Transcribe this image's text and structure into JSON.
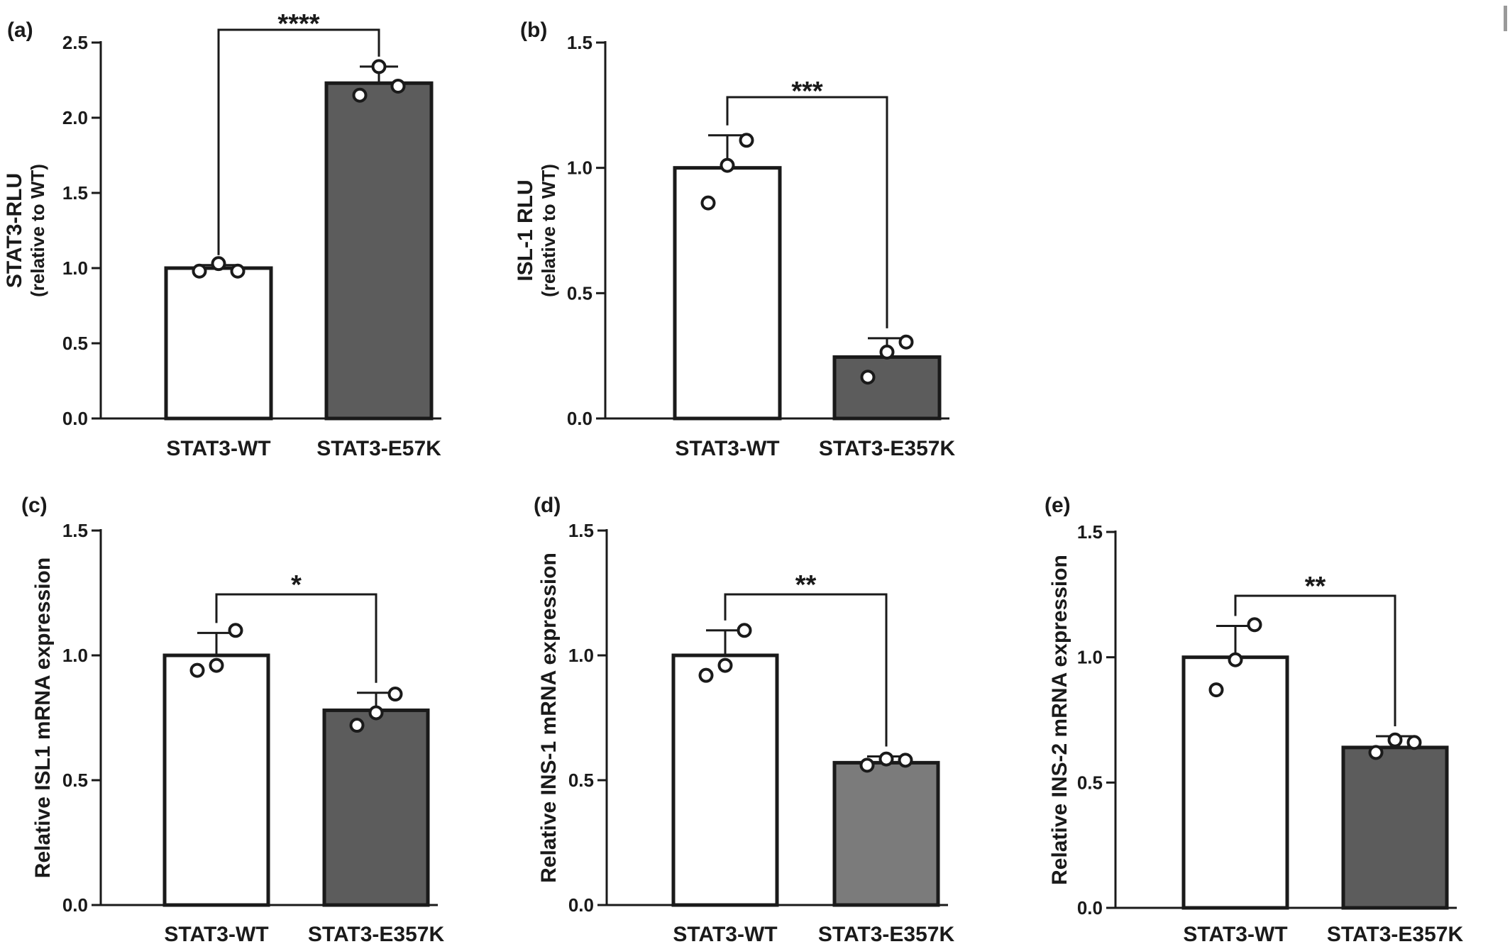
{
  "figure": {
    "panels": [
      {
        "label": "(a)",
        "ylabel": [
          "STAT3-RLU",
          "(relative to WT)"
        ],
        "categories": [
          "STAT3-WT",
          "STAT3-E57K"
        ],
        "yticks": [
          "0.0",
          "0.5",
          "1.0",
          "1.5",
          "2.0",
          "2.5"
        ],
        "significance": "****"
      },
      {
        "label": "(b)",
        "ylabel": [
          "ISL-1 RLU",
          "(relative to WT)"
        ],
        "categories": [
          "STAT3-WT",
          "STAT3-E357K"
        ],
        "yticks": [
          "0.0",
          "0.5",
          "1.0",
          "1.5"
        ],
        "significance": "***"
      },
      {
        "label": "(c)",
        "ylabel": [
          "Relative ISL1 mRNA expression"
        ],
        "categories": [
          "STAT3-WT",
          "STAT3-E357K"
        ],
        "yticks": [
          "0.0",
          "0.5",
          "1.0",
          "1.5"
        ],
        "significance": "*"
      },
      {
        "label": "(d)",
        "ylabel": [
          "Relative INS-1 mRNA expression"
        ],
        "categories": [
          "STAT3-WT",
          "STAT3-E357K"
        ],
        "yticks": [
          "0.0",
          "0.5",
          "1.0",
          "1.5"
        ],
        "significance": "**"
      },
      {
        "label": "(e)",
        "ylabel": [
          "Relative INS-2 mRNA expression"
        ],
        "categories": [
          "STAT3-WT",
          "STAT3-E357K"
        ],
        "yticks": [
          "0.0",
          "0.5",
          "1.0",
          "1.5"
        ],
        "significance": "**"
      }
    ]
  },
  "chart_data": [
    {
      "type": "bar",
      "categories": [
        "STAT3-WT",
        "STAT3-E57K"
      ],
      "values": [
        1.0,
        2.23
      ],
      "error_upper": [
        1.02,
        2.34
      ],
      "points": [
        [
          0.98,
          1.03,
          0.98
        ],
        [
          2.15,
          2.34,
          2.21
        ]
      ],
      "bar_colors": [
        "#ffffff",
        "#5c5c5c"
      ],
      "ylim": [
        0,
        2.5
      ],
      "ylabel": "STAT3-RLU (relative to WT)",
      "significance": "****"
    },
    {
      "type": "bar",
      "categories": [
        "STAT3-WT",
        "STAT3-E357K"
      ],
      "values": [
        1.0,
        0.245
      ],
      "error_upper": [
        1.13,
        0.32
      ],
      "points": [
        [
          0.86,
          1.01,
          1.11
        ],
        [
          0.165,
          0.265,
          0.305
        ]
      ],
      "bar_colors": [
        "#ffffff",
        "#5c5c5c"
      ],
      "ylim": [
        0,
        1.5
      ],
      "ylabel": "ISL-1 RLU (relative to WT)",
      "significance": "***"
    },
    {
      "type": "bar",
      "categories": [
        "STAT3-WT",
        "STAT3-E357K"
      ],
      "values": [
        1.0,
        0.78
      ],
      "error_upper": [
        1.09,
        0.85
      ],
      "points": [
        [
          0.94,
          0.96,
          1.1
        ],
        [
          0.72,
          0.77,
          0.845
        ]
      ],
      "bar_colors": [
        "#ffffff",
        "#5c5c5c"
      ],
      "ylim": [
        0,
        1.5
      ],
      "ylabel": "Relative ISL1 mRNA expression",
      "significance": "*"
    },
    {
      "type": "bar",
      "categories": [
        "STAT3-WT",
        "STAT3-E357K"
      ],
      "values": [
        1.0,
        0.57
      ],
      "error_upper": [
        1.1,
        0.595
      ],
      "points": [
        [
          0.92,
          0.96,
          1.1
        ],
        [
          0.56,
          0.585,
          0.58
        ]
      ],
      "bar_colors": [
        "#ffffff",
        "#7b7b7b"
      ],
      "ylim": [
        0,
        1.5
      ],
      "ylabel": "Relative INS-1 mRNA expression",
      "significance": "**"
    },
    {
      "type": "bar",
      "categories": [
        "STAT3-WT",
        "STAT3-E357K"
      ],
      "values": [
        1.0,
        0.64
      ],
      "error_upper": [
        1.125,
        0.685
      ],
      "points": [
        [
          0.87,
          0.99,
          1.13
        ],
        [
          0.62,
          0.67,
          0.66
        ]
      ],
      "bar_colors": [
        "#ffffff",
        "#5c5c5c"
      ],
      "ylim": [
        0,
        1.5
      ],
      "ylabel": "Relative INS-2 mRNA expression",
      "significance": "**"
    }
  ]
}
